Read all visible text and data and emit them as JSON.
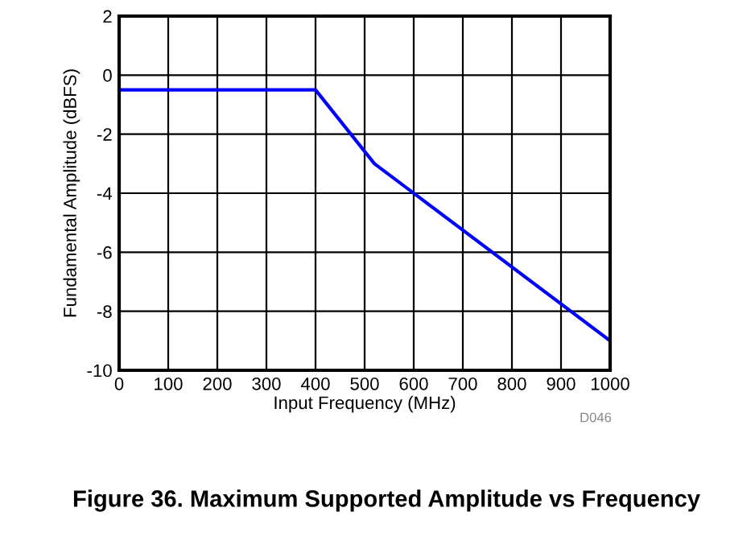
{
  "chart_data": {
    "type": "line",
    "title": "Figure 36. Maximum Supported Amplitude vs Frequency",
    "xlabel": "Input Frequency (MHz)",
    "ylabel": "Fundamental Amplitude (dBFS)",
    "annotations": [
      "D046"
    ],
    "series": [
      {
        "color": "#0000ff",
        "x": [
          0,
          400,
          520,
          1000
        ],
        "values": [
          -0.5,
          -0.5,
          -3,
          -9
        ]
      }
    ],
    "xlim": [
      0,
      1000
    ],
    "xticks": [
      0,
      100,
      200,
      300,
      400,
      500,
      600,
      700,
      800,
      900,
      1000
    ],
    "ylim": [
      -10,
      2
    ],
    "yticks": [
      -10,
      -8,
      -6,
      -4,
      -2,
      0,
      2
    ],
    "grid": true,
    "marker": "none",
    "line_style": "solid"
  }
}
